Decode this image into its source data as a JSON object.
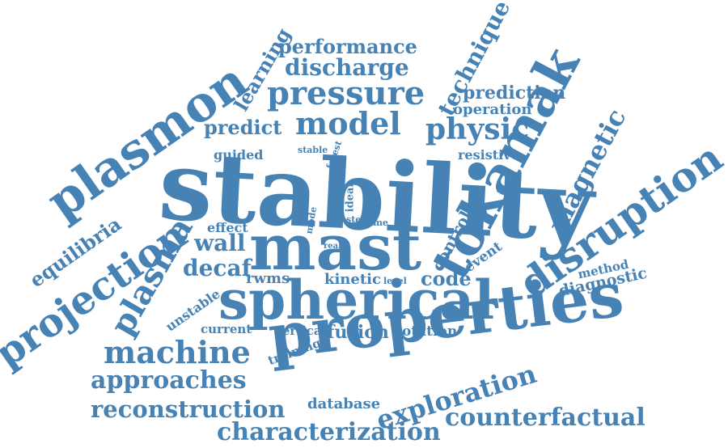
{
  "cloud": {
    "color": "#4682b4",
    "words": [
      "stability",
      "mast",
      "properties",
      "spherical",
      "tokamak",
      "plasmon",
      "disruption",
      "projection",
      "plasma",
      "pressure",
      "machine",
      "model",
      "physic",
      "approaches",
      "reconstruction",
      "characterization",
      "exploration",
      "counterfactual",
      "magnetic",
      "technique",
      "discharge",
      "performance",
      "learning",
      "equilibria",
      "wall",
      "decaf",
      "code",
      "fusion",
      "predict",
      "prediction",
      "operation",
      "diagnostic",
      "database",
      "kinetic",
      "rwms",
      "unstable",
      "current",
      "vertical",
      "rotation",
      "training",
      "control",
      "event",
      "method",
      "guided",
      "resistive",
      "effect",
      "stable",
      "forest",
      "ideal",
      "mode",
      "step",
      "time",
      "real",
      "level"
    ]
  }
}
